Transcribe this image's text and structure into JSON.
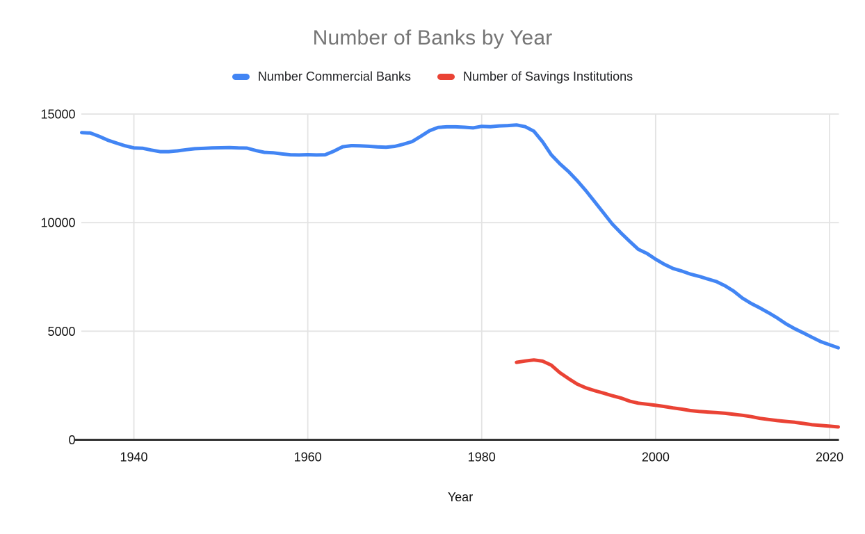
{
  "title": "Number of Banks by Year",
  "chart_data": {
    "type": "line",
    "title": "Number of Banks by Year",
    "xlabel": "Year",
    "ylabel": "",
    "xlim": [
      1934,
      2021
    ],
    "ylim": [
      0,
      15000
    ],
    "x_ticks": [
      1940,
      1960,
      1980,
      2000,
      2020
    ],
    "y_ticks": [
      0,
      5000,
      10000,
      15000
    ],
    "grid": true,
    "legend_position": "top",
    "colors": {
      "title_text": "#757575",
      "legend_text": "#202124",
      "tick_label_text": "#111111",
      "axis_title_text": "#111111",
      "gridline": "#e3e3e3",
      "axis_line": "#333333",
      "background": "#ffffff"
    },
    "series": [
      {
        "name": "Number Commercial Banks",
        "color": "#4285f4",
        "x_start": 1934,
        "x_step": 1,
        "values": [
          14146,
          14125,
          13973,
          13797,
          13661,
          13538,
          13442,
          13426,
          13343,
          13268,
          13268,
          13302,
          13359,
          13403,
          13419,
          13436,
          13446,
          13455,
          13439,
          13432,
          13323,
          13237,
          13218,
          13165,
          13124,
          13114,
          13126,
          13115,
          13124,
          13291,
          13493,
          13544,
          13538,
          13514,
          13487,
          13473,
          13511,
          13612,
          13733,
          13976,
          14230,
          14384,
          14410,
          14411,
          14391,
          14364,
          14434,
          14414,
          14451,
          14469,
          14496,
          14417,
          14210,
          13723,
          13123,
          12709,
          12347,
          11927,
          11463,
          10959,
          10452,
          9942,
          9528,
          9143,
          8774,
          8581,
          8315,
          8080,
          7888,
          7770,
          7631,
          7526,
          7402,
          7284,
          7087,
          6840,
          6519,
          6275,
          6072,
          5847,
          5607,
          5338,
          5112,
          4918,
          4717,
          4519,
          4377,
          4236
        ]
      },
      {
        "name": "Number of Savings Institutions",
        "color": "#ea4335",
        "x_start": 1984,
        "x_step": 1,
        "values": [
          3566,
          3626,
          3677,
          3622,
          3438,
          3087,
          2815,
          2561,
          2390,
          2262,
          2152,
          2030,
          1924,
          1780,
          1687,
          1640,
          1589,
          1534,
          1466,
          1411,
          1345,
          1307,
          1279,
          1251,
          1219,
          1173,
          1128,
          1067,
          987,
          936,
          884,
          844,
          806,
          752,
          691,
          659,
          627,
          593
        ]
      }
    ]
  }
}
